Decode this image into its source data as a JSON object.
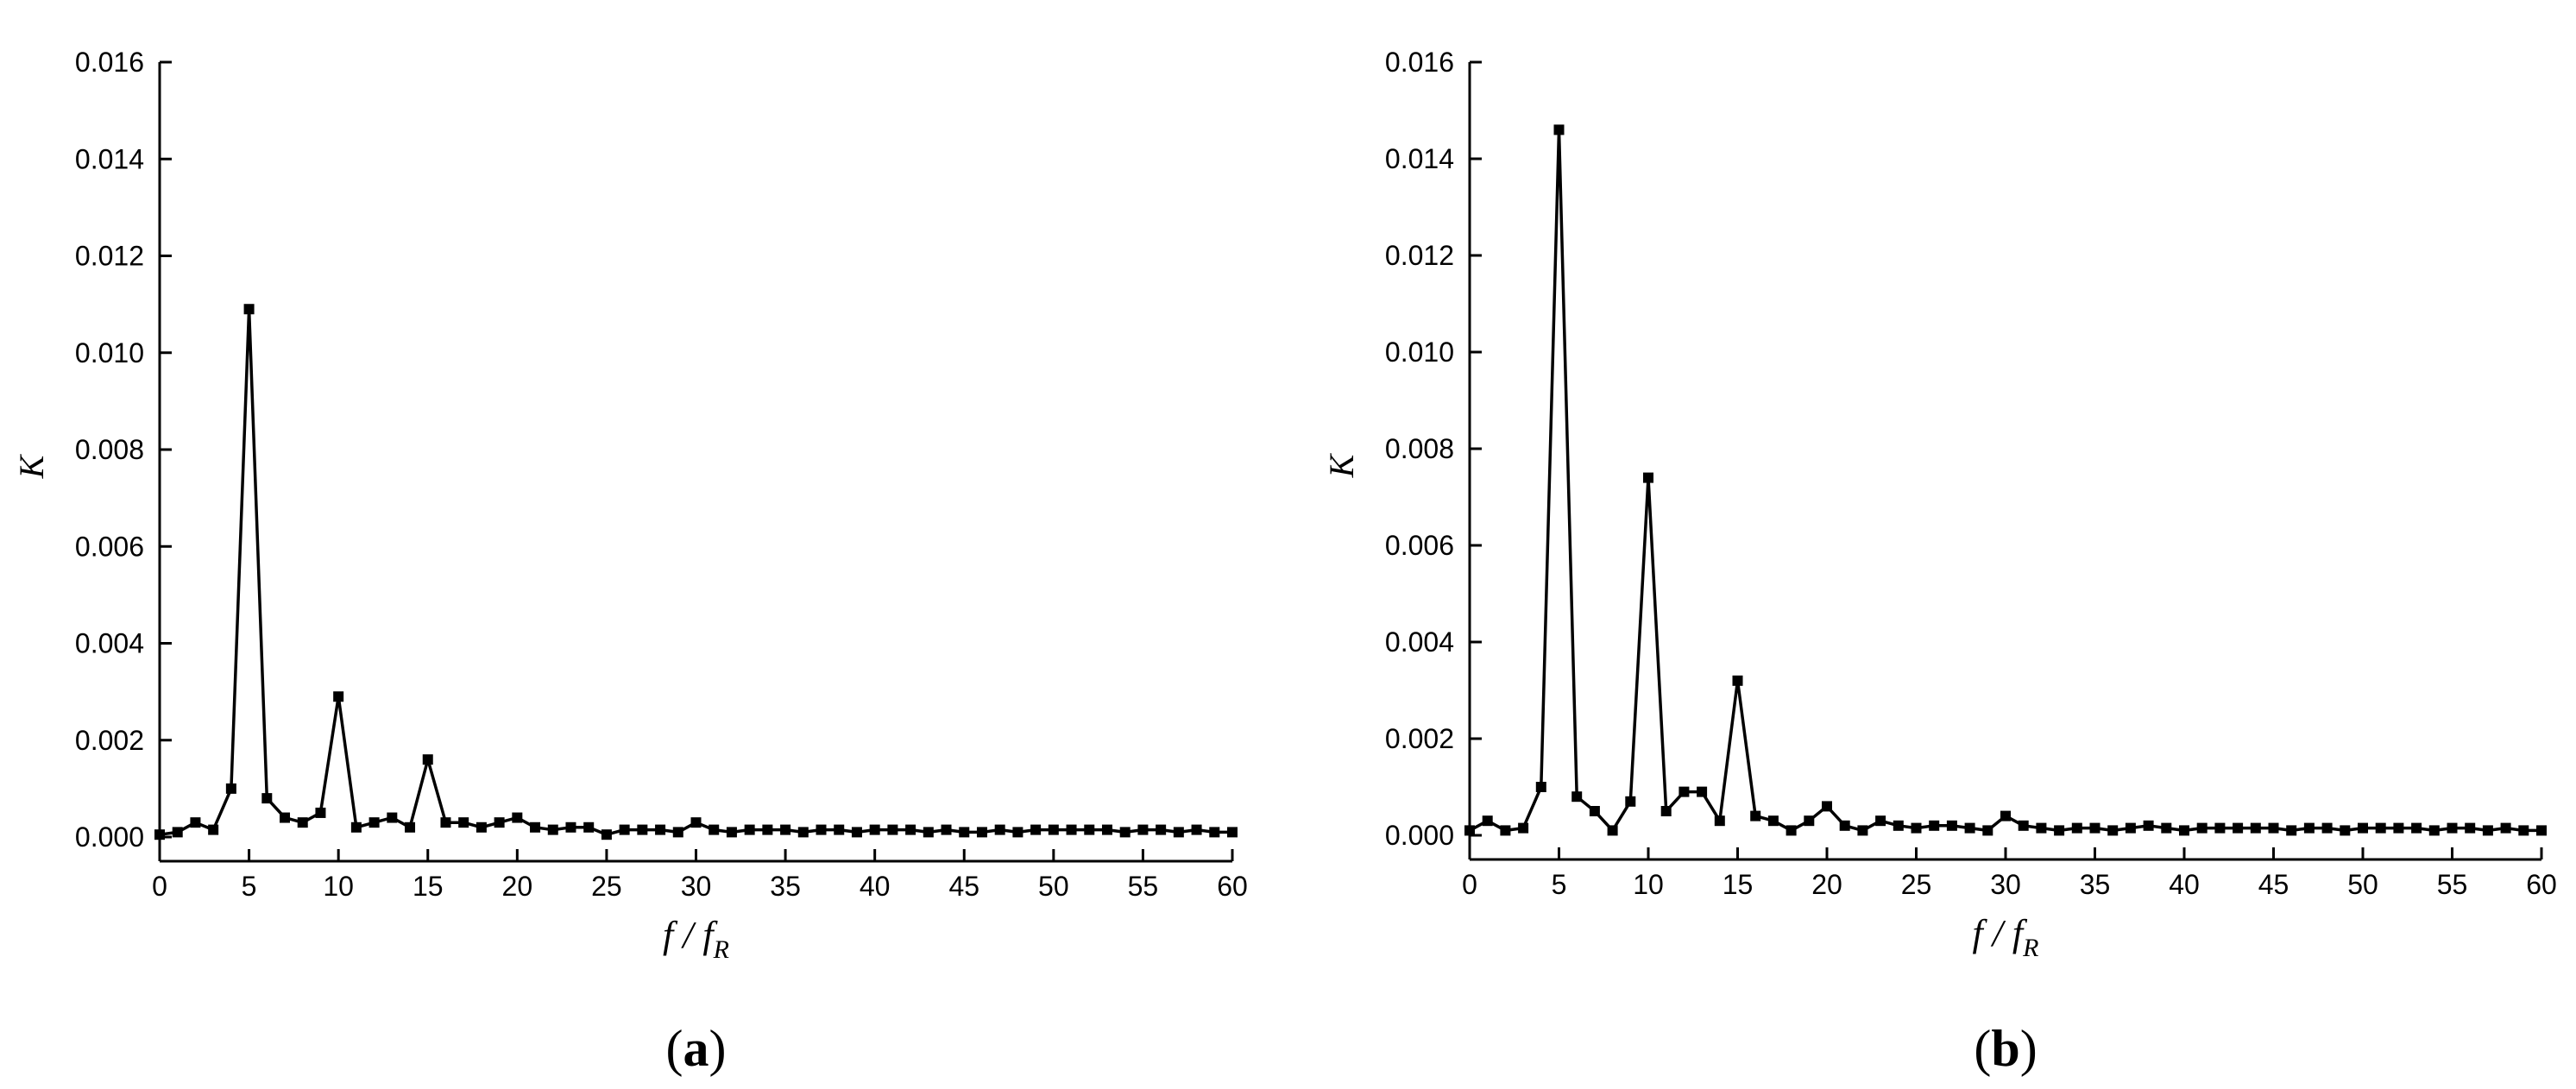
{
  "chart_data": [
    {
      "type": "line",
      "panel_label": "a",
      "ylabel": "K",
      "xlabel_main": "f / f",
      "xlabel_sub": "R",
      "xlim": [
        0,
        60
      ],
      "ylim": [
        0,
        0.016
      ],
      "xticks": [
        "0",
        "5",
        "10",
        "15",
        "20",
        "25",
        "30",
        "35",
        "40",
        "45",
        "50",
        "55",
        "60"
      ],
      "yticks": [
        "0.000",
        "0.002",
        "0.004",
        "0.006",
        "0.008",
        "0.010",
        "0.012",
        "0.014",
        "0.016"
      ],
      "grid": false,
      "x": [
        0,
        1,
        2,
        3,
        4,
        5,
        6,
        7,
        8,
        9,
        10,
        11,
        12,
        13,
        14,
        15,
        16,
        17,
        18,
        19,
        20,
        21,
        22,
        23,
        24,
        25,
        26,
        27,
        28,
        29,
        30,
        31,
        32,
        33,
        34,
        35,
        36,
        37,
        38,
        39,
        40,
        41,
        42,
        43,
        44,
        45,
        46,
        47,
        48,
        49,
        50,
        51,
        52,
        53,
        54,
        55,
        56,
        57,
        58,
        59,
        60
      ],
      "y": [
        5e-05,
        0.0001,
        0.0003,
        0.00015,
        0.001,
        0.0109,
        0.0008,
        0.0004,
        0.0003,
        0.0005,
        0.0029,
        0.0002,
        0.0003,
        0.0004,
        0.0002,
        0.0016,
        0.0003,
        0.0003,
        0.0002,
        0.0003,
        0.0004,
        0.0002,
        0.00015,
        0.0002,
        0.0002,
        5e-05,
        0.00015,
        0.00015,
        0.00015,
        0.0001,
        0.0003,
        0.00015,
        0.0001,
        0.00015,
        0.00015,
        0.00015,
        0.0001,
        0.00015,
        0.00015,
        0.0001,
        0.00015,
        0.00015,
        0.00015,
        0.0001,
        0.00015,
        0.0001,
        0.0001,
        0.00015,
        0.0001,
        0.00015,
        0.00015,
        0.00015,
        0.00015,
        0.00015,
        0.0001,
        0.00015,
        0.00015,
        0.0001,
        0.00015,
        0.0001,
        0.0001
      ]
    },
    {
      "type": "line",
      "panel_label": "b",
      "ylabel": "K",
      "xlabel_main": "f / f",
      "xlabel_sub": "R",
      "xlim": [
        0,
        60
      ],
      "ylim": [
        0,
        0.016
      ],
      "xticks": [
        "0",
        "5",
        "10",
        "15",
        "20",
        "25",
        "30",
        "35",
        "40",
        "45",
        "50",
        "55",
        "60"
      ],
      "yticks": [
        "0.000",
        "0.002",
        "0.004",
        "0.006",
        "0.008",
        "0.010",
        "0.012",
        "0.014",
        "0.016"
      ],
      "grid": false,
      "x": [
        0,
        1,
        2,
        3,
        4,
        5,
        6,
        7,
        8,
        9,
        10,
        11,
        12,
        13,
        14,
        15,
        16,
        17,
        18,
        19,
        20,
        21,
        22,
        23,
        24,
        25,
        26,
        27,
        28,
        29,
        30,
        31,
        32,
        33,
        34,
        35,
        36,
        37,
        38,
        39,
        40,
        41,
        42,
        43,
        44,
        45,
        46,
        47,
        48,
        49,
        50,
        51,
        52,
        53,
        54,
        55,
        56,
        57,
        58,
        59,
        60
      ],
      "y": [
        0.0001,
        0.0003,
        0.0001,
        0.00015,
        0.001,
        0.0146,
        0.0008,
        0.0005,
        0.0001,
        0.0007,
        0.0074,
        0.0005,
        0.0009,
        0.0009,
        0.0003,
        0.0032,
        0.0004,
        0.0003,
        0.0001,
        0.0003,
        0.0006,
        0.0002,
        0.0001,
        0.0003,
        0.0002,
        0.00015,
        0.0002,
        0.0002,
        0.00015,
        0.0001,
        0.0004,
        0.0002,
        0.00015,
        0.0001,
        0.00015,
        0.00015,
        0.0001,
        0.00015,
        0.0002,
        0.00015,
        0.0001,
        0.00015,
        0.00015,
        0.00015,
        0.00015,
        0.00015,
        0.0001,
        0.00015,
        0.00015,
        0.0001,
        0.00015,
        0.00015,
        0.00015,
        0.00015,
        0.0001,
        0.00015,
        0.00015,
        0.0001,
        0.00015,
        0.0001,
        0.0001
      ]
    }
  ]
}
